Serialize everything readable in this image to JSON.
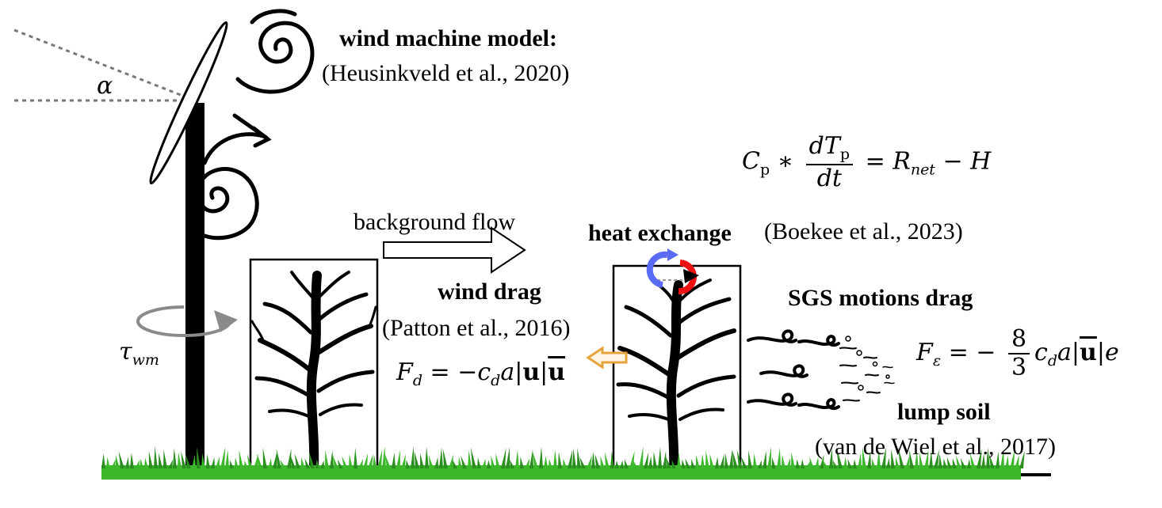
{
  "labels": {
    "wind_machine_title": "wind machine model:",
    "wind_machine_ref": "(Heusinkveld et al., 2020)",
    "alpha": "α",
    "background_flow": "background flow",
    "heat_exchange": "heat exchange",
    "heat_exchange_ref": "(Boekee et al., 2023)",
    "wind_drag": "wind drag",
    "wind_drag_ref": "(Patton et al., 2016)",
    "sgs_drag": "SGS motions drag",
    "lump_soil": "lump soil",
    "lump_soil_ref": "(van de Wiel et al., 2017)"
  },
  "equations": {
    "heat_balance": {
      "lhs_symbol": "C",
      "lhs_sub": "p",
      "op": "∗",
      "num": "dT",
      "num_sub": "p",
      "den": "dt",
      "rhs": "= R",
      "rhs_sub": "net",
      "rhs_tail": "− H"
    },
    "drag_force": {
      "lhs": "F",
      "lhs_sub": "d",
      "eq": "= −c",
      "c_sub": "d",
      "a": "a",
      "u": "u",
      "ubar": "u"
    },
    "sgs_force": {
      "lhs": "F",
      "lhs_sub": "ε",
      "eq": "= −",
      "num": "8",
      "den": "3",
      "c": "c",
      "c_sub": "d",
      "a": "a",
      "ubar": "u",
      "e": "e"
    },
    "torque": {
      "symbol": "τ",
      "sub": "wm"
    }
  },
  "colors": {
    "grass": "#3cb72c",
    "grass_dark": "#2a8f1e",
    "heat_blue": "#5a6cf5",
    "heat_red": "#ee1111",
    "drag_arrow": "#e8a23a",
    "rotation_arrow": "#8a8a8a",
    "dotted_line": "#777777"
  },
  "icons": {
    "trees": "bare-tree-icon",
    "wind_machine": "wind-machine-icon",
    "swirls": "spiral-vortex-icon",
    "sgs_swirls": "small-eddy-icon"
  }
}
